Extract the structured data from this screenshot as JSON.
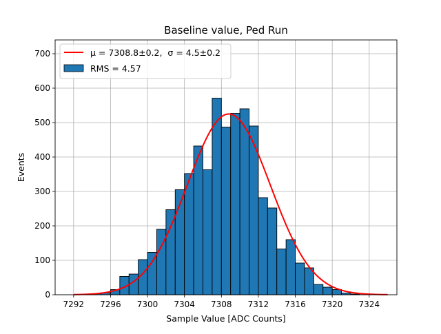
{
  "chart_data": {
    "type": "bar",
    "title": "Baseline value, Ped Run",
    "xlabel": "Sample Value [ADC Counts]",
    "ylabel": "Events",
    "xlim": [
      7290,
      7327
    ],
    "ylim": [
      0,
      740
    ],
    "xticks": [
      7292,
      7296,
      7300,
      7304,
      7308,
      7312,
      7316,
      7320,
      7324
    ],
    "yticks": [
      0,
      100,
      200,
      300,
      400,
      500,
      600,
      700
    ],
    "grid": true,
    "legend_position": "top-left",
    "bar_color": "#1f77b4",
    "bar_edge_color": "#000000",
    "fit_color": "#ff0000",
    "bins": {
      "start": 7293,
      "width": 1,
      "values": [
        2,
        3,
        6,
        15,
        53,
        60,
        102,
        123,
        190,
        247,
        305,
        352,
        432,
        363,
        571,
        487,
        527,
        540,
        490,
        282,
        252,
        133,
        160,
        92,
        78,
        30,
        22,
        15,
        5,
        2
      ]
    },
    "histogram_series": {
      "legend": "RMS = 4.57"
    },
    "fit_series": {
      "legend_mu": "μ = 7308.8±0.2,",
      "legend_sigma": "σ = 4.5±0.2",
      "mu": 7308.8,
      "sigma": 4.5,
      "amplitude": 525,
      "x_range": [
        7292,
        7326
      ]
    }
  }
}
